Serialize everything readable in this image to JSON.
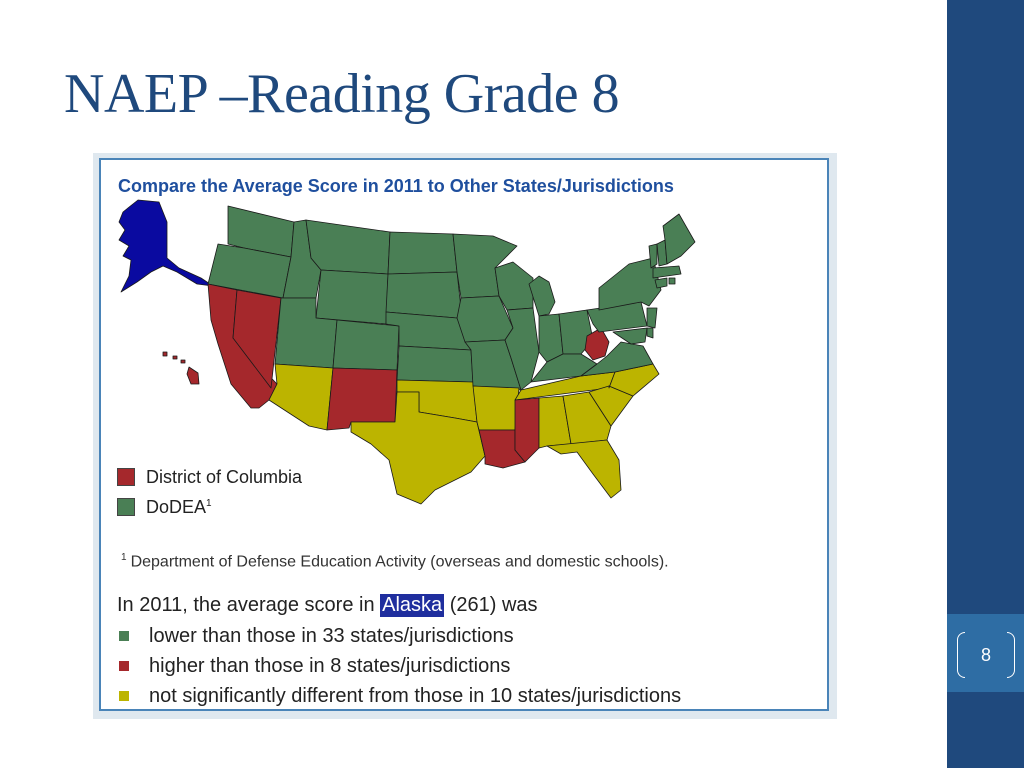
{
  "slide": {
    "title": "NAEP –Reading Grade 8",
    "page_number": "8"
  },
  "colors": {
    "title": "#1f497d",
    "sidebar": "#1f497d",
    "page_badge": "#2e6da4",
    "lower": "#4a7f55",
    "higher": "#a5282c",
    "not_different": "#bcb400",
    "focal_state": "#0a0aa0"
  },
  "map": {
    "title": "Compare the Average Score in 2011 to Other States/Jurisdictions",
    "inset_legend": [
      {
        "label": "District of Columbia",
        "category": "higher"
      },
      {
        "label": "DoDEA",
        "sup": "1",
        "category": "lower"
      }
    ],
    "footnote": {
      "marker": "1",
      "text": "Department of Defense Education Activity (overseas and domestic schools)."
    },
    "summary": {
      "prefix": "In 2011, the average score in ",
      "state": "Alaska",
      "suffix": " (261) was"
    },
    "legend": [
      {
        "category": "lower",
        "label": "lower than those in 33 states/jurisdictions"
      },
      {
        "category": "higher",
        "label": "higher than those in 8 states/jurisdictions"
      },
      {
        "category": "not_different",
        "label": "not significantly different from those in 10 states/jurisdictions"
      }
    ],
    "states": [
      {
        "name": "Alaska",
        "category": "focal"
      },
      {
        "name": "Hawaii",
        "category": "higher"
      },
      {
        "name": "Washington",
        "category": "lower"
      },
      {
        "name": "Oregon",
        "category": "lower"
      },
      {
        "name": "California",
        "category": "higher"
      },
      {
        "name": "Nevada",
        "category": "higher"
      },
      {
        "name": "Idaho",
        "category": "lower"
      },
      {
        "name": "Montana",
        "category": "lower"
      },
      {
        "name": "Wyoming",
        "category": "lower"
      },
      {
        "name": "Utah",
        "category": "lower"
      },
      {
        "name": "Colorado",
        "category": "lower"
      },
      {
        "name": "Arizona",
        "category": "not_different"
      },
      {
        "name": "New Mexico",
        "category": "higher"
      },
      {
        "name": "North Dakota",
        "category": "lower"
      },
      {
        "name": "South Dakota",
        "category": "lower"
      },
      {
        "name": "Nebraska",
        "category": "lower"
      },
      {
        "name": "Kansas",
        "category": "lower"
      },
      {
        "name": "Oklahoma",
        "category": "not_different"
      },
      {
        "name": "Texas",
        "category": "not_different"
      },
      {
        "name": "Minnesota",
        "category": "lower"
      },
      {
        "name": "Iowa",
        "category": "lower"
      },
      {
        "name": "Missouri",
        "category": "lower"
      },
      {
        "name": "Arkansas",
        "category": "not_different"
      },
      {
        "name": "Louisiana",
        "category": "higher"
      },
      {
        "name": "Wisconsin",
        "category": "lower"
      },
      {
        "name": "Illinois",
        "category": "lower"
      },
      {
        "name": "Michigan",
        "category": "lower"
      },
      {
        "name": "Indiana",
        "category": "lower"
      },
      {
        "name": "Ohio",
        "category": "lower"
      },
      {
        "name": "Kentucky",
        "category": "lower"
      },
      {
        "name": "Tennessee",
        "category": "not_different"
      },
      {
        "name": "Mississippi",
        "category": "higher"
      },
      {
        "name": "Alabama",
        "category": "not_different"
      },
      {
        "name": "Georgia",
        "category": "not_different"
      },
      {
        "name": "Florida",
        "category": "not_different"
      },
      {
        "name": "South Carolina",
        "category": "not_different"
      },
      {
        "name": "North Carolina",
        "category": "not_different"
      },
      {
        "name": "Virginia",
        "category": "lower"
      },
      {
        "name": "West Virginia",
        "category": "higher"
      },
      {
        "name": "Pennsylvania",
        "category": "lower"
      },
      {
        "name": "New York",
        "category": "lower"
      },
      {
        "name": "Vermont",
        "category": "lower"
      },
      {
        "name": "New Hampshire",
        "category": "lower"
      },
      {
        "name": "Maine",
        "category": "lower"
      },
      {
        "name": "Massachusetts",
        "category": "lower"
      },
      {
        "name": "Connecticut",
        "category": "lower"
      },
      {
        "name": "Rhode Island",
        "category": "lower"
      },
      {
        "name": "New Jersey",
        "category": "lower"
      },
      {
        "name": "Delaware",
        "category": "lower"
      },
      {
        "name": "Maryland",
        "category": "lower"
      }
    ]
  }
}
